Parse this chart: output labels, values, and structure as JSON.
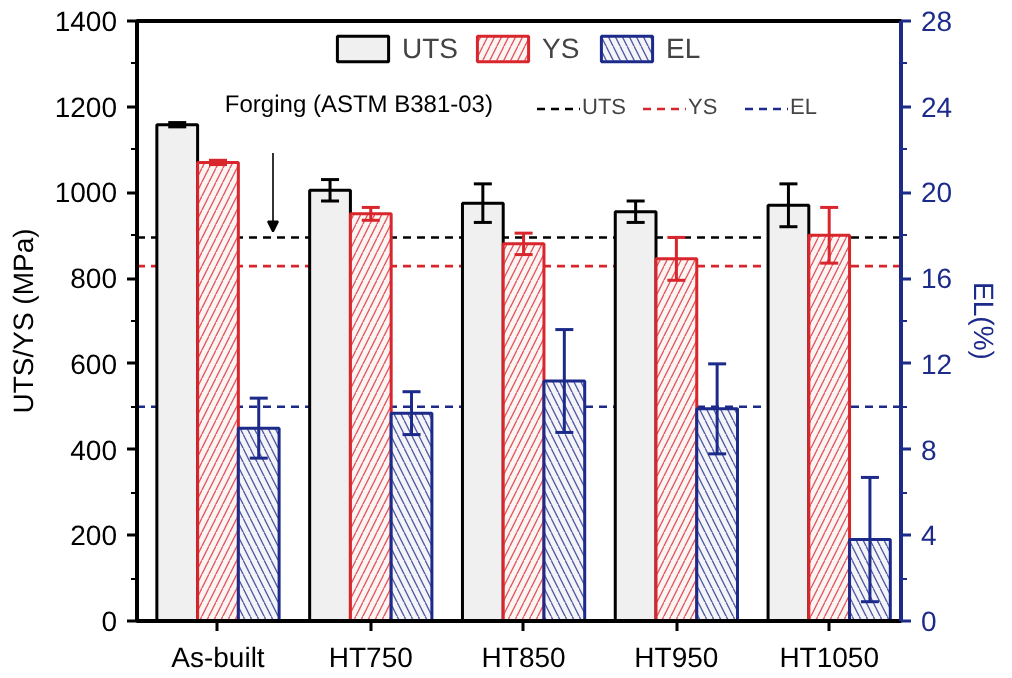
{
  "chart_data": {
    "type": "bar",
    "categories": [
      "As-built",
      "HT750",
      "HT850",
      "HT950",
      "HT1050"
    ],
    "series": [
      {
        "name": "UTS",
        "color": "#000000",
        "values": [
          1158,
          1005,
          975,
          955,
          970
        ],
        "errors": [
          5,
          25,
          45,
          25,
          50
        ]
      },
      {
        "name": "YS",
        "color": "#d8262c",
        "values": [
          1070,
          950,
          880,
          845,
          900
        ],
        "errors": [
          5,
          15,
          25,
          50,
          65
        ]
      },
      {
        "name": "EL",
        "color": "#1c2a8a",
        "axis": "y2",
        "values": [
          9.0,
          9.7,
          11.2,
          9.9,
          3.8
        ],
        "errors": [
          1.4,
          1.0,
          2.4,
          2.1,
          2.9
        ]
      }
    ],
    "ylabel": "UTS/YS (MPa)",
    "y2label": "EL(%)",
    "ylim": [
      0,
      1400
    ],
    "yticks": [
      0,
      200,
      400,
      600,
      800,
      1000,
      1200,
      1400
    ],
    "y2lim": [
      0,
      28
    ],
    "y2ticks": [
      0,
      4,
      8,
      12,
      16,
      20,
      24,
      28
    ],
    "legend_title": "Forging (ASTM B381-03)",
    "ref_lines": [
      {
        "axis": "y",
        "value": 895,
        "label": "UTS",
        "color": "#000000",
        "line_style": "dashed"
      },
      {
        "axis": "y",
        "value": 828,
        "label": "YS",
        "color": "#d8262c",
        "line_style": "dashed"
      },
      {
        "axis": "y2",
        "value": 10,
        "label": "EL",
        "color": "#1c2a8a",
        "line_style": "dashed"
      }
    ],
    "legend": "top"
  }
}
